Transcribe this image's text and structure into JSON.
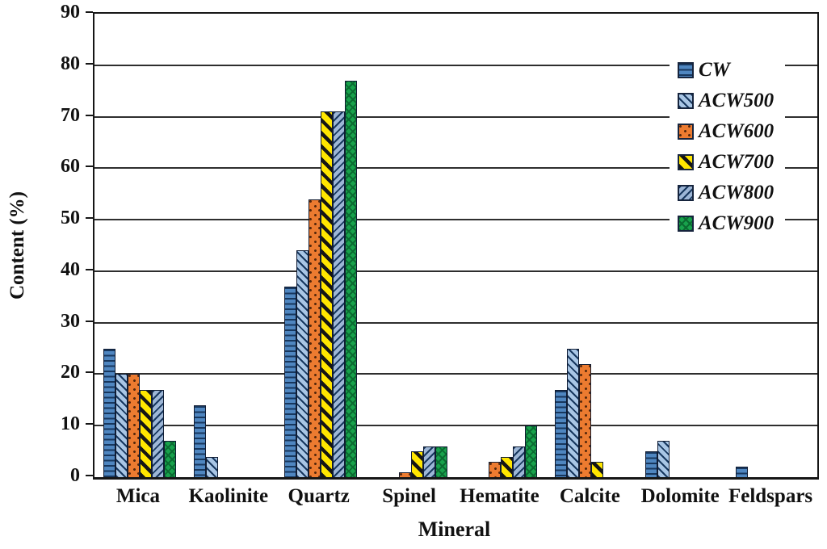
{
  "figure": {
    "background_color": "#ffffff",
    "text_color": "#111111",
    "grid_color": "#2e2e2e"
  },
  "chart_data": {
    "type": "bar",
    "title": "",
    "xlabel": "Mineral",
    "ylabel": "Content (%)",
    "ylim": [
      0,
      90
    ],
    "ytick_step": 10,
    "grid": "horizontal gridlines on",
    "legend_position": "inside top-right",
    "categories": [
      "Mica",
      "Kaolinite",
      "Quartz",
      "Spinel",
      "Hematite",
      "Calcite",
      "Dolomite",
      "Feldspars"
    ],
    "series": [
      {
        "name": "CW",
        "pattern": "hlines",
        "base_color": "#4f86c0",
        "stripe_color": "#17375e",
        "values": [
          25,
          14,
          37,
          0,
          0,
          17,
          5,
          2
        ]
      },
      {
        "name": "ACW500",
        "pattern": "diag-up",
        "base_color": "#a9c6e5",
        "stripe_color": "#17375e",
        "values": [
          20,
          4,
          44,
          0,
          0,
          25,
          7,
          0
        ]
      },
      {
        "name": "ACW600",
        "pattern": "dots",
        "base_color": "#ec7b30",
        "stripe_color": "#54270b",
        "values": [
          20,
          0,
          54,
          1,
          3,
          22,
          0,
          0
        ]
      },
      {
        "name": "ACW700",
        "pattern": "diag-up-thick",
        "base_color": "#ffe600",
        "stripe_color": "#151515",
        "values": [
          17,
          0,
          71,
          5,
          4,
          3,
          0,
          0
        ]
      },
      {
        "name": "ACW800",
        "pattern": "diag-down",
        "base_color": "#9db6d6",
        "stripe_color": "#17375e",
        "values": [
          17,
          0,
          71,
          6,
          6,
          0,
          0,
          0
        ]
      },
      {
        "name": "ACW900",
        "pattern": "crosshatch",
        "base_color": "#18a24c",
        "stripe_color": "#0a6b31",
        "values": [
          7,
          0,
          77,
          6,
          10,
          0,
          0,
          0
        ]
      }
    ]
  }
}
